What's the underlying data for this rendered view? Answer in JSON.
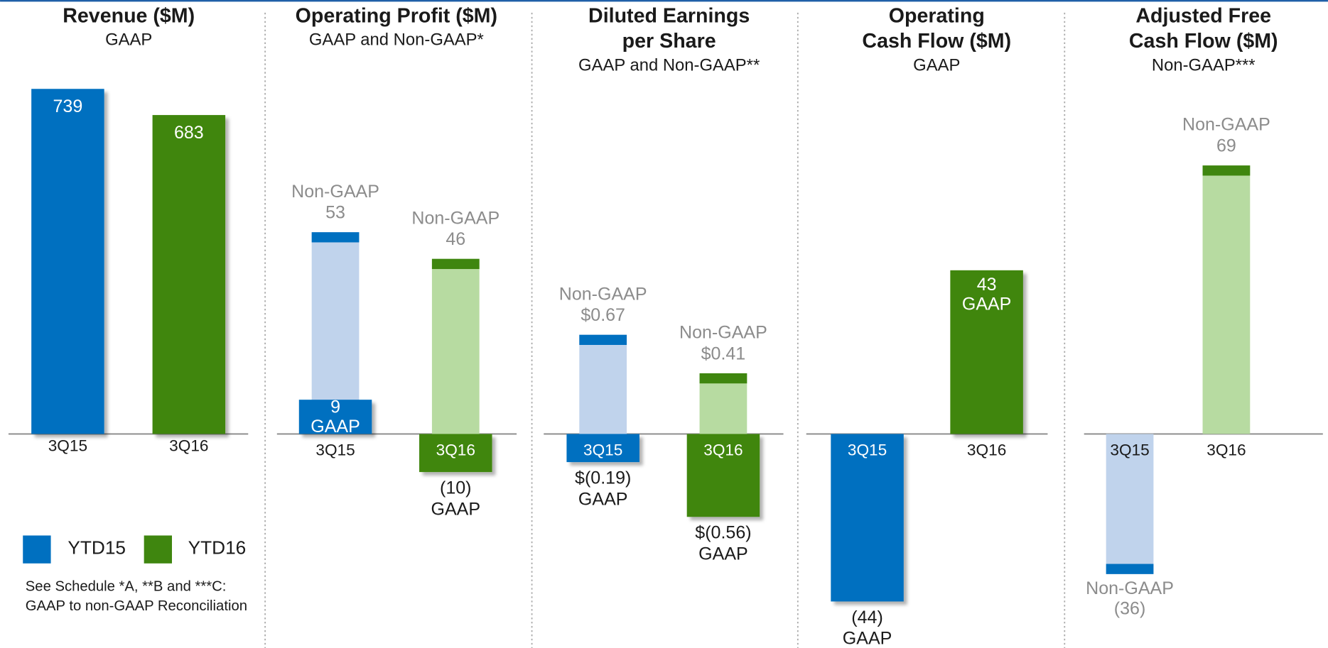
{
  "chart_data": [
    {
      "type": "bar",
      "title": [
        "Revenue ($M)"
      ],
      "subtitle": "GAAP",
      "categories": [
        "3Q15",
        "3Q16"
      ],
      "values": [
        739,
        683
      ],
      "colors": [
        "#0070c0",
        "#3f860f"
      ]
    },
    {
      "type": "bar",
      "title": [
        "Operating Profit ($M)"
      ],
      "subtitle": "GAAP and Non-GAAP*",
      "categories": [
        "3Q15",
        "3Q16"
      ],
      "colors": [
        "#0070c0",
        "#3f860f"
      ],
      "light_colors": [
        "#c0d3ec",
        "#b7dba1"
      ],
      "series": [
        {
          "name": "Non-GAAP",
          "values": [
            53,
            46
          ]
        },
        {
          "name": "GAAP",
          "values": [
            9,
            -10
          ],
          "value_labels": [
            "9",
            "(10)"
          ]
        }
      ]
    },
    {
      "type": "bar",
      "title": [
        "Diluted Earnings",
        "per Share"
      ],
      "subtitle": "GAAP and Non-GAAP**",
      "categories": [
        "3Q15",
        "3Q16"
      ],
      "colors": [
        "#0070c0",
        "#3f860f"
      ],
      "light_colors": [
        "#c0d3ec",
        "#b7dba1"
      ],
      "series": [
        {
          "name": "Non-GAAP",
          "values": [
            0.67,
            0.41
          ],
          "value_labels": [
            "$0.67",
            "$0.41"
          ]
        },
        {
          "name": "GAAP",
          "values": [
            -0.19,
            -0.56
          ],
          "value_labels": [
            "$(0.19)",
            "$(0.56)"
          ]
        }
      ]
    },
    {
      "type": "bar",
      "title": [
        "Operating",
        "Cash Flow ($M)"
      ],
      "subtitle": "GAAP",
      "categories": [
        "3Q15",
        "3Q16"
      ],
      "colors": [
        "#0070c0",
        "#3f860f"
      ],
      "series": [
        {
          "name": "GAAP",
          "values": [
            -44,
            43
          ],
          "value_labels": [
            "(44)",
            "43"
          ]
        }
      ]
    },
    {
      "type": "bar",
      "title": [
        "Adjusted Free",
        "Cash Flow ($M)"
      ],
      "subtitle": "Non-GAAP***",
      "categories": [
        "3Q15",
        "3Q16"
      ],
      "colors": [
        "#0070c0",
        "#3f860f"
      ],
      "light_colors": [
        "#c0d3ec",
        "#b7dba1"
      ],
      "series": [
        {
          "name": "Non-GAAP",
          "values": [
            -36,
            69
          ],
          "value_labels": [
            "(36)",
            "69"
          ]
        }
      ]
    }
  ],
  "legend": [
    {
      "name": "YTD15",
      "color": "#0070c0"
    },
    {
      "name": "YTD16",
      "color": "#3f860f"
    }
  ],
  "footnote": [
    "See Schedule *A, **B and  ***C:",
    "GAAP to non-GAAP Reconciliation"
  ]
}
